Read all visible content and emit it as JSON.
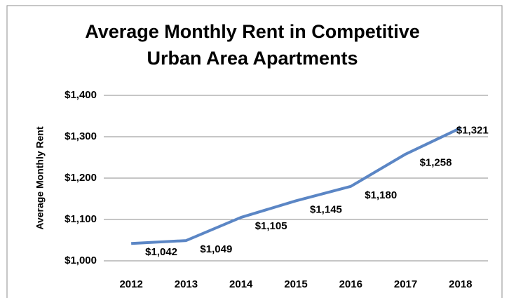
{
  "chart_data": {
    "type": "line",
    "title": "Average Monthly Rent in Competitive Urban Area Apartments",
    "y_label": "Average Monthly Rent",
    "categories": [
      "2012",
      "2013",
      "2014",
      "2015",
      "2016",
      "2017",
      "2018"
    ],
    "series": [
      {
        "name": "Average Monthly Rent",
        "color": "#5b86c5",
        "values": [
          1042,
          1049,
          1105,
          1145,
          1180,
          1258,
          1321
        ],
        "value_labels": [
          "$1,042",
          "$1,049",
          "$1,105",
          "$1,145",
          "$1,180",
          "$1,258",
          "$1,321"
        ]
      }
    ],
    "ylim": [
      1000,
      1400
    ],
    "yticks": [
      {
        "value": 1000,
        "label": "$1,000"
      },
      {
        "value": 1100,
        "label": "$1,100"
      },
      {
        "value": 1200,
        "label": "$1,200"
      },
      {
        "value": 1300,
        "label": "$1,300"
      },
      {
        "value": 1400,
        "label": "$1,400"
      }
    ],
    "grid": true,
    "legend": false
  }
}
